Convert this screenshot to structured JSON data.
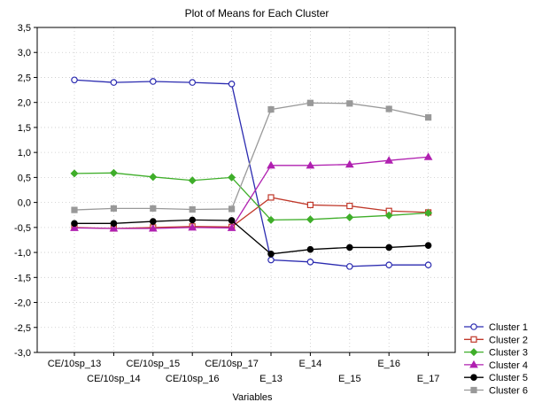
{
  "chart_data": {
    "type": "line",
    "title": "Plot of Means for Each Cluster",
    "xlabel": "Variables",
    "ylabel": "",
    "ylim": [
      -3.0,
      3.5
    ],
    "y_ticks": [
      "3,5",
      "3,0",
      "2,5",
      "2,0",
      "1,5",
      "1,0",
      "0,5",
      "0,0",
      "-0,5",
      "-1,0",
      "-1,5",
      "-2,0",
      "-2,5",
      "-3,0"
    ],
    "categories": [
      "CE/10sp_13",
      "CE/10sp_14",
      "CE/10sp_15",
      "CE/10sp_16",
      "CE/10sp_17",
      "E_13",
      "E_14",
      "E_15",
      "E_16",
      "E_17"
    ],
    "grid": true,
    "legend_position": "bottom-right",
    "series": [
      {
        "name": "Cluster  1",
        "color": "#2b2bb0",
        "marker": "circle-open",
        "values": [
          2.45,
          2.4,
          2.42,
          2.4,
          2.37,
          -1.15,
          -1.19,
          -1.28,
          -1.25,
          -1.25
        ]
      },
      {
        "name": "Cluster  2",
        "color": "#c0392b",
        "marker": "square-open",
        "values": [
          -0.5,
          -0.52,
          -0.5,
          -0.48,
          -0.49,
          0.1,
          -0.05,
          -0.07,
          -0.17,
          -0.2
        ]
      },
      {
        "name": "Cluster  3",
        "color": "#3fae2a",
        "marker": "diamond",
        "values": [
          0.58,
          0.59,
          0.51,
          0.44,
          0.5,
          -0.35,
          -0.34,
          -0.3,
          -0.26,
          -0.21
        ]
      },
      {
        "name": "Cluster  4",
        "color": "#b020b0",
        "marker": "triangle",
        "values": [
          -0.51,
          -0.52,
          -0.52,
          -0.5,
          -0.51,
          0.74,
          0.74,
          0.76,
          0.84,
          0.91
        ]
      },
      {
        "name": "Cluster  5",
        "color": "#000000",
        "marker": "circle-filled",
        "values": [
          -0.42,
          -0.42,
          -0.38,
          -0.35,
          -0.36,
          -1.03,
          -0.94,
          -0.9,
          -0.9,
          -0.86
        ]
      },
      {
        "name": "Cluster  6",
        "color": "#999999",
        "marker": "square-filled",
        "values": [
          -0.15,
          -0.12,
          -0.12,
          -0.14,
          -0.13,
          1.86,
          1.99,
          1.98,
          1.87,
          1.7
        ]
      }
    ]
  }
}
